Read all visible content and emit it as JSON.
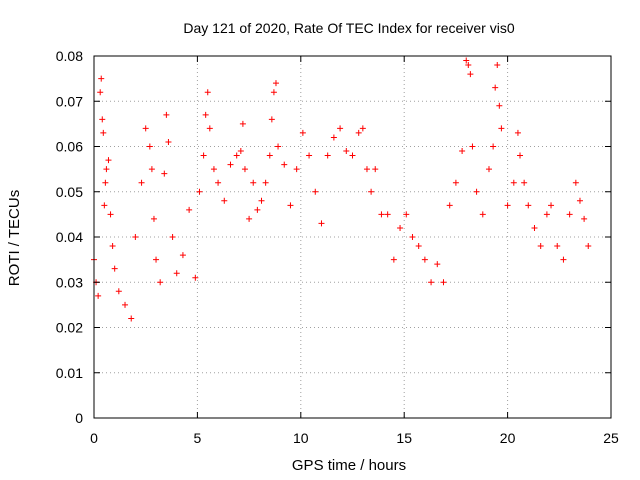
{
  "chart_data": {
    "type": "scatter",
    "title": "Day 121 of 2020, Rate Of TEC Index for receiver vis0",
    "xlabel": "GPS time / hours",
    "ylabel": "ROTI / TECUs",
    "xlim": [
      0,
      25
    ],
    "ylim": [
      0,
      0.08
    ],
    "x_ticks": [
      0,
      5,
      10,
      15,
      20,
      25
    ],
    "y_ticks": [
      0,
      0.01,
      0.02,
      0.03,
      0.04,
      0.05,
      0.06,
      0.07,
      0.08
    ],
    "x_tick_labels": [
      "0",
      "5",
      "10",
      "15",
      "20",
      "25"
    ],
    "y_tick_labels": [
      "0",
      "0.01",
      "0.02",
      "0.03",
      "0.04",
      "0.05",
      "0.06",
      "0.07",
      "0.08"
    ],
    "grid": true,
    "grid_style": "dotted",
    "marker": "+",
    "colors": {
      "series": "#ff0000",
      "grid": "#a0a0a0",
      "axis": "#000000"
    },
    "series": [
      {
        "x": [
          0.0,
          0.1,
          0.2,
          0.3,
          0.35,
          0.4,
          0.45,
          0.5,
          0.55,
          0.6,
          0.7,
          0.8,
          0.9,
          1.0,
          1.2,
          1.5,
          1.8,
          2.0,
          2.3,
          2.5,
          2.7,
          2.8,
          2.9,
          3.0,
          3.2,
          3.4,
          3.5,
          3.6,
          3.8,
          4.0,
          4.3,
          4.6,
          4.9,
          5.1,
          5.3,
          5.4,
          5.5,
          5.6,
          5.8,
          6.0,
          6.3,
          6.6,
          6.9,
          7.1,
          7.2,
          7.3,
          7.5,
          7.7,
          7.9,
          8.1,
          8.3,
          8.5,
          8.6,
          8.7,
          8.8,
          8.9,
          9.2,
          9.5,
          9.8,
          10.1,
          10.4,
          10.7,
          11.0,
          11.3,
          11.6,
          11.9,
          12.2,
          12.5,
          12.8,
          13.0,
          13.2,
          13.4,
          13.6,
          13.9,
          14.2,
          14.5,
          14.8,
          15.1,
          15.4,
          15.7,
          16.0,
          16.3,
          16.6,
          16.9,
          17.2,
          17.5,
          17.8,
          18.0,
          18.1,
          18.2,
          18.3,
          18.5,
          18.8,
          19.1,
          19.3,
          19.4,
          19.5,
          19.6,
          19.7,
          20.0,
          20.3,
          20.5,
          20.6,
          20.8,
          21.0,
          21.3,
          21.6,
          21.9,
          22.1,
          22.4,
          22.7,
          23.0,
          23.3,
          23.5,
          23.7,
          23.9
        ],
        "y": [
          0.035,
          0.03,
          0.027,
          0.072,
          0.075,
          0.066,
          0.063,
          0.047,
          0.052,
          0.055,
          0.057,
          0.045,
          0.038,
          0.033,
          0.028,
          0.025,
          0.022,
          0.04,
          0.052,
          0.064,
          0.06,
          0.055,
          0.044,
          0.035,
          0.03,
          0.054,
          0.067,
          0.061,
          0.04,
          0.032,
          0.036,
          0.046,
          0.031,
          0.05,
          0.058,
          0.067,
          0.072,
          0.064,
          0.055,
          0.052,
          0.048,
          0.056,
          0.058,
          0.059,
          0.065,
          0.055,
          0.044,
          0.052,
          0.046,
          0.048,
          0.052,
          0.058,
          0.066,
          0.072,
          0.074,
          0.06,
          0.056,
          0.047,
          0.055,
          0.063,
          0.058,
          0.05,
          0.043,
          0.058,
          0.062,
          0.064,
          0.059,
          0.058,
          0.063,
          0.064,
          0.055,
          0.05,
          0.055,
          0.045,
          0.045,
          0.035,
          0.042,
          0.045,
          0.04,
          0.038,
          0.035,
          0.03,
          0.034,
          0.03,
          0.047,
          0.052,
          0.059,
          0.079,
          0.078,
          0.076,
          0.06,
          0.05,
          0.045,
          0.055,
          0.06,
          0.073,
          0.078,
          0.069,
          0.064,
          0.047,
          0.052,
          0.063,
          0.058,
          0.052,
          0.047,
          0.042,
          0.038,
          0.045,
          0.047,
          0.038,
          0.035,
          0.045,
          0.052,
          0.048,
          0.044,
          0.038
        ]
      }
    ]
  }
}
